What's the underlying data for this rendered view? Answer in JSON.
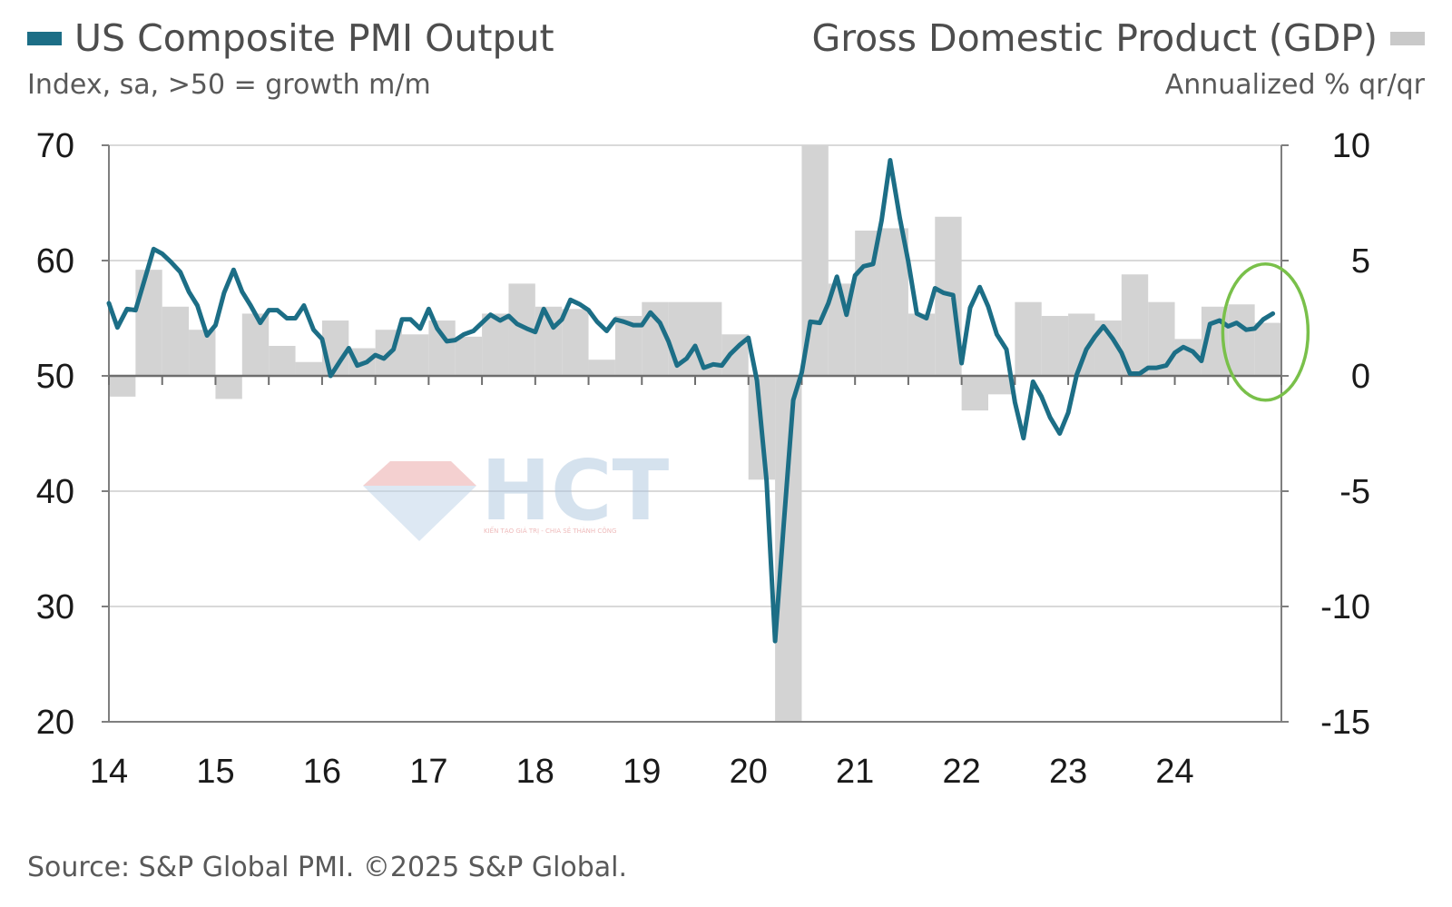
{
  "header": {
    "left_title": "US Composite PMI Output",
    "left_subtitle": "Index, sa, >50 = growth m/m",
    "right_title": "Gross Domestic Product (GDP)",
    "right_subtitle": "Annualized % qr/qr"
  },
  "source": "Source: S&P Global PMI. ©2025 S&P Global.",
  "watermark": {
    "text": "HCT",
    "tagline": "KIẾN TẠO GIÁ TRỊ - CHIA SẺ THÀNH CÔNG"
  },
  "colors": {
    "pmi_line": "#1c6e86",
    "gdp_bars": "#d3d3d3",
    "highlight_circle": "#79c04a",
    "grid": "#d9d9d9",
    "axis": "#7f7f7f"
  },
  "chart_data": {
    "type": "bar+line",
    "x_axis": {
      "ticks": [
        "14",
        "15",
        "16",
        "17",
        "18",
        "19",
        "20",
        "21",
        "22",
        "23",
        "24"
      ],
      "range": [
        2014.0,
        2025.0
      ]
    },
    "y_left": {
      "ticks": [
        70,
        60,
        50,
        40,
        30,
        20
      ],
      "range": [
        20,
        70
      ]
    },
    "y_right": {
      "ticks": [
        "10",
        "5",
        "0",
        "-5",
        "-10",
        "-15"
      ],
      "range": [
        -15,
        10
      ]
    },
    "grid": true,
    "highlight": {
      "shape": "ellipse",
      "center_x": 2024.85,
      "center_y_pmi": 53.8
    },
    "series": [
      {
        "kind": "bar",
        "axis": "right",
        "quarters": [
          "2014Q1",
          "2014Q2",
          "2014Q3",
          "2014Q4",
          "2015Q1",
          "2015Q2",
          "2015Q3",
          "2015Q4",
          "2016Q1",
          "2016Q2",
          "2016Q3",
          "2016Q4",
          "2017Q1",
          "2017Q2",
          "2017Q3",
          "2017Q4",
          "2018Q1",
          "2018Q2",
          "2018Q3",
          "2018Q4",
          "2019Q1",
          "2019Q2",
          "2019Q3",
          "2019Q4",
          "2020Q1",
          "2020Q2",
          "2020Q3",
          "2020Q4",
          "2021Q1",
          "2021Q2",
          "2021Q3",
          "2021Q4",
          "2022Q1",
          "2022Q2",
          "2022Q3",
          "2022Q4",
          "2023Q1",
          "2023Q2",
          "2023Q3",
          "2023Q4",
          "2024Q1",
          "2024Q2",
          "2024Q3",
          "2024Q4"
        ],
        "values": [
          -0.9,
          4.6,
          3.0,
          2.0,
          -1.0,
          2.7,
          1.3,
          0.6,
          2.4,
          1.2,
          2.0,
          1.8,
          2.4,
          1.7,
          2.7,
          4.0,
          3.0,
          2.9,
          0.7,
          2.6,
          3.2,
          3.2,
          3.2,
          1.8,
          -4.5,
          -15.0,
          10.0,
          4.0,
          6.3,
          6.4,
          2.7,
          6.9,
          -1.5,
          -0.8,
          3.2,
          2.6,
          2.7,
          2.4,
          4.4,
          3.2,
          1.6,
          3.0,
          3.1,
          2.3
        ]
      },
      {
        "kind": "line",
        "axis": "left",
        "points": [
          [
            2014.0,
            56.3
          ],
          [
            2014.08,
            54.2
          ],
          [
            2014.17,
            55.8
          ],
          [
            2014.25,
            55.7
          ],
          [
            2014.33,
            58.2
          ],
          [
            2014.42,
            61.0
          ],
          [
            2014.5,
            60.6
          ],
          [
            2014.58,
            59.9
          ],
          [
            2014.67,
            59.0
          ],
          [
            2014.75,
            57.3
          ],
          [
            2014.83,
            56.1
          ],
          [
            2014.92,
            53.5
          ],
          [
            2015.0,
            54.4
          ],
          [
            2015.08,
            57.2
          ],
          [
            2015.17,
            59.2
          ],
          [
            2015.25,
            57.3
          ],
          [
            2015.33,
            56.1
          ],
          [
            2015.42,
            54.6
          ],
          [
            2015.5,
            55.7
          ],
          [
            2015.58,
            55.7
          ],
          [
            2015.67,
            55.0
          ],
          [
            2015.75,
            55.0
          ],
          [
            2015.83,
            56.1
          ],
          [
            2015.92,
            54.0
          ],
          [
            2016.0,
            53.2
          ],
          [
            2016.08,
            50.0
          ],
          [
            2016.17,
            51.3
          ],
          [
            2016.25,
            52.4
          ],
          [
            2016.33,
            50.9
          ],
          [
            2016.42,
            51.2
          ],
          [
            2016.5,
            51.8
          ],
          [
            2016.58,
            51.5
          ],
          [
            2016.67,
            52.3
          ],
          [
            2016.75,
            54.9
          ],
          [
            2016.83,
            54.9
          ],
          [
            2016.92,
            54.1
          ],
          [
            2017.0,
            55.8
          ],
          [
            2017.08,
            54.1
          ],
          [
            2017.17,
            53.0
          ],
          [
            2017.25,
            53.1
          ],
          [
            2017.33,
            53.6
          ],
          [
            2017.42,
            53.9
          ],
          [
            2017.5,
            54.6
          ],
          [
            2017.58,
            55.3
          ],
          [
            2017.67,
            54.8
          ],
          [
            2017.75,
            55.2
          ],
          [
            2017.83,
            54.5
          ],
          [
            2017.92,
            54.1
          ],
          [
            2018.0,
            53.8
          ],
          [
            2018.08,
            55.8
          ],
          [
            2018.17,
            54.2
          ],
          [
            2018.25,
            54.9
          ],
          [
            2018.33,
            56.6
          ],
          [
            2018.42,
            56.2
          ],
          [
            2018.5,
            55.7
          ],
          [
            2018.58,
            54.7
          ],
          [
            2018.67,
            53.9
          ],
          [
            2018.75,
            54.9
          ],
          [
            2018.83,
            54.7
          ],
          [
            2018.92,
            54.4
          ],
          [
            2019.0,
            54.4
          ],
          [
            2019.08,
            55.5
          ],
          [
            2019.17,
            54.6
          ],
          [
            2019.25,
            53.0
          ],
          [
            2019.33,
            50.9
          ],
          [
            2019.42,
            51.5
          ],
          [
            2019.5,
            52.6
          ],
          [
            2019.58,
            50.7
          ],
          [
            2019.67,
            51.0
          ],
          [
            2019.75,
            50.9
          ],
          [
            2019.83,
            51.9
          ],
          [
            2019.92,
            52.7
          ],
          [
            2020.0,
            53.3
          ],
          [
            2020.08,
            49.6
          ],
          [
            2020.17,
            40.9
          ],
          [
            2020.25,
            27.0
          ],
          [
            2020.33,
            37.0
          ],
          [
            2020.42,
            47.9
          ],
          [
            2020.5,
            50.3
          ],
          [
            2020.58,
            54.7
          ],
          [
            2020.67,
            54.6
          ],
          [
            2020.75,
            56.3
          ],
          [
            2020.83,
            58.6
          ],
          [
            2020.92,
            55.3
          ],
          [
            2021.0,
            58.7
          ],
          [
            2021.08,
            59.5
          ],
          [
            2021.17,
            59.7
          ],
          [
            2021.25,
            63.5
          ],
          [
            2021.33,
            68.7
          ],
          [
            2021.42,
            63.7
          ],
          [
            2021.5,
            59.9
          ],
          [
            2021.58,
            55.4
          ],
          [
            2021.67,
            55.0
          ],
          [
            2021.75,
            57.6
          ],
          [
            2021.83,
            57.2
          ],
          [
            2021.92,
            57.0
          ],
          [
            2022.0,
            51.1
          ],
          [
            2022.08,
            55.9
          ],
          [
            2022.17,
            57.7
          ],
          [
            2022.25,
            56.0
          ],
          [
            2022.33,
            53.6
          ],
          [
            2022.42,
            52.3
          ],
          [
            2022.5,
            47.7
          ],
          [
            2022.58,
            44.6
          ],
          [
            2022.67,
            49.5
          ],
          [
            2022.75,
            48.2
          ],
          [
            2022.83,
            46.4
          ],
          [
            2022.92,
            45.0
          ],
          [
            2023.0,
            46.8
          ],
          [
            2023.08,
            50.1
          ],
          [
            2023.17,
            52.3
          ],
          [
            2023.25,
            53.4
          ],
          [
            2023.33,
            54.3
          ],
          [
            2023.42,
            53.2
          ],
          [
            2023.5,
            52.0
          ],
          [
            2023.58,
            50.2
          ],
          [
            2023.67,
            50.2
          ],
          [
            2023.75,
            50.7
          ],
          [
            2023.83,
            50.7
          ],
          [
            2023.92,
            50.9
          ],
          [
            2024.0,
            52.0
          ],
          [
            2024.08,
            52.5
          ],
          [
            2024.17,
            52.1
          ],
          [
            2024.25,
            51.3
          ],
          [
            2024.33,
            54.5
          ],
          [
            2024.42,
            54.8
          ],
          [
            2024.5,
            54.3
          ],
          [
            2024.58,
            54.6
          ],
          [
            2024.67,
            54.0
          ],
          [
            2024.75,
            54.1
          ],
          [
            2024.83,
            54.9
          ],
          [
            2024.92,
            55.4
          ]
        ]
      }
    ]
  }
}
